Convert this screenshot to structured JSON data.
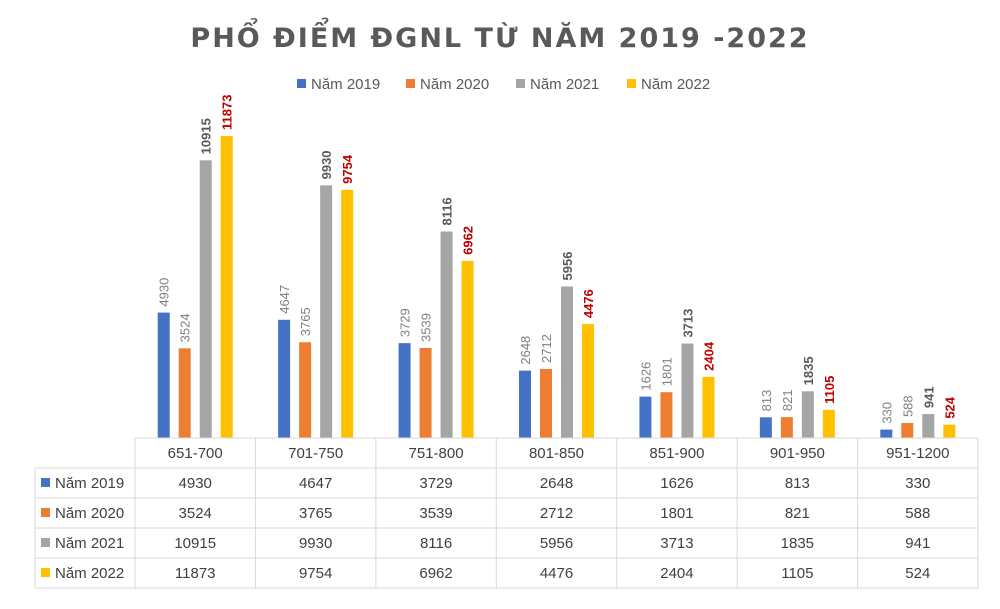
{
  "chart_data": {
    "type": "bar",
    "title": "PHỔ ĐIỂM ĐGNL TỪ NĂM 2019 -2022",
    "categories": [
      "651-700",
      "701-750",
      "751-800",
      "801-850",
      "851-900",
      "901-950",
      "951-1200"
    ],
    "series": [
      {
        "name": "Năm 2019",
        "color": "#4472C4",
        "label_color": "#7f7f7f",
        "label_bold": false,
        "values": [
          4930,
          4647,
          3729,
          2648,
          1626,
          813,
          330
        ]
      },
      {
        "name": "Năm 2020",
        "color": "#ED7D31",
        "label_color": "#7f7f7f",
        "label_bold": false,
        "values": [
          3524,
          3765,
          3539,
          2712,
          1801,
          821,
          588
        ]
      },
      {
        "name": "Năm 2021",
        "color": "#A5A5A5",
        "label_color": "#595959",
        "label_bold": true,
        "values": [
          10915,
          9930,
          8116,
          5956,
          3713,
          1835,
          941
        ]
      },
      {
        "name": "Năm 2022",
        "color": "#FFC000",
        "label_color": "#c00000",
        "label_bold": true,
        "values": [
          11873,
          9754,
          6962,
          4476,
          2404,
          1105,
          524
        ]
      }
    ],
    "ylim": [
      0,
      12500
    ],
    "legend": "top",
    "data_table": true,
    "grid": false
  }
}
